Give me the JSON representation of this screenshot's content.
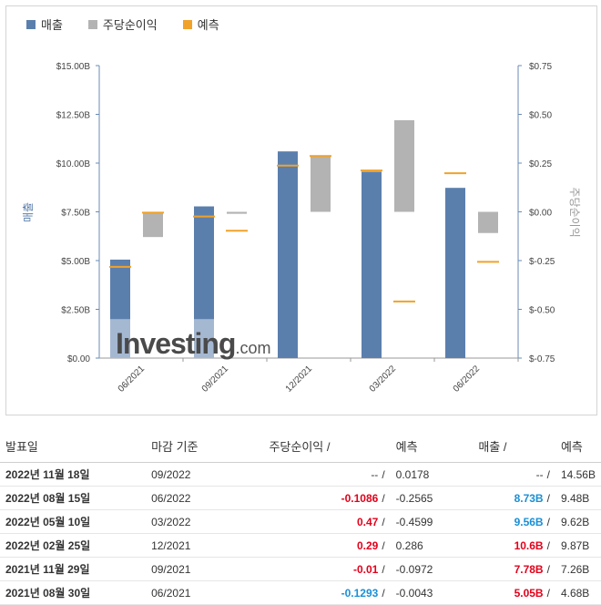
{
  "legend": [
    {
      "label": "매출",
      "color": "#5b7fad"
    },
    {
      "label": "주당순이익",
      "color": "#b3b3b3"
    },
    {
      "label": "예측",
      "color": "#f0a22a"
    }
  ],
  "chart_data": {
    "type": "bar",
    "categories": [
      "06/2021",
      "09/2021",
      "12/2021",
      "03/2022",
      "06/2022"
    ],
    "ylabel_left": "매출",
    "ylabel_right": "주당순이익",
    "left_ticks": [
      "$0.00",
      "$2.50B",
      "$5.00B",
      "$7.50B",
      "$10.00B",
      "$12.50B",
      "$15.00B"
    ],
    "right_ticks": [
      "$-0.75",
      "$-0.50",
      "$-0.25",
      "$0.00",
      "$0.25",
      "$0.50",
      "$0.75"
    ],
    "ylim_left": [
      0,
      15
    ],
    "ylim_right": [
      -0.75,
      0.75
    ],
    "series": [
      {
        "name": "매출",
        "values": [
          5.05,
          7.78,
          10.6,
          9.56,
          8.73
        ],
        "axis": "left"
      },
      {
        "name": "매출 예측",
        "values": [
          4.68,
          7.26,
          9.87,
          9.62,
          9.48
        ],
        "axis": "left"
      },
      {
        "name": "주당순이익",
        "values": [
          -0.1293,
          -0.01,
          0.29,
          0.47,
          -0.1086
        ],
        "axis": "right"
      },
      {
        "name": "주당순이익 예측",
        "values": [
          -0.0043,
          -0.0972,
          0.286,
          -0.4599,
          -0.2565
        ],
        "axis": "right"
      }
    ],
    "grid": false,
    "legend_position": "top-left"
  },
  "watermark": {
    "brand": "Investing",
    "suffix": ".com"
  },
  "table": {
    "headers": {
      "date": "발표일",
      "period": "마감 기준",
      "eps": "주당순이익",
      "eps_forecast": "예측",
      "revenue": "매출",
      "revenue_forecast": "예측",
      "sep": "/"
    },
    "rows": [
      {
        "date": "2022년 11월 18일",
        "period": "09/2022",
        "eps": "--",
        "eps_class": "plain",
        "eps_forecast": "0.0178",
        "revenue": "--",
        "revenue_class": "plain",
        "revenue_forecast": "14.56B"
      },
      {
        "date": "2022년 08월 15일",
        "period": "06/2022",
        "eps": "-0.1086",
        "eps_class": "neg",
        "eps_forecast": "-0.2565",
        "revenue": "8.73B",
        "revenue_class": "pos",
        "revenue_forecast": "9.48B"
      },
      {
        "date": "2022년 05월 10일",
        "period": "03/2022",
        "eps": "0.47",
        "eps_class": "neg",
        "eps_forecast": "-0.4599",
        "revenue": "9.56B",
        "revenue_class": "pos",
        "revenue_forecast": "9.62B"
      },
      {
        "date": "2022년 02월 25일",
        "period": "12/2021",
        "eps": "0.29",
        "eps_class": "neg",
        "eps_forecast": "0.286",
        "revenue": "10.6B",
        "revenue_class": "neg",
        "revenue_forecast": "9.87B"
      },
      {
        "date": "2021년 11월 29일",
        "period": "09/2021",
        "eps": "-0.01",
        "eps_class": "neg",
        "eps_forecast": "-0.0972",
        "revenue": "7.78B",
        "revenue_class": "neg",
        "revenue_forecast": "7.26B"
      },
      {
        "date": "2021년 08월 30일",
        "period": "06/2021",
        "eps": "-0.1293",
        "eps_class": "pos",
        "eps_forecast": "-0.0043",
        "revenue": "5.05B",
        "revenue_class": "neg",
        "revenue_forecast": "4.68B"
      }
    ]
  }
}
